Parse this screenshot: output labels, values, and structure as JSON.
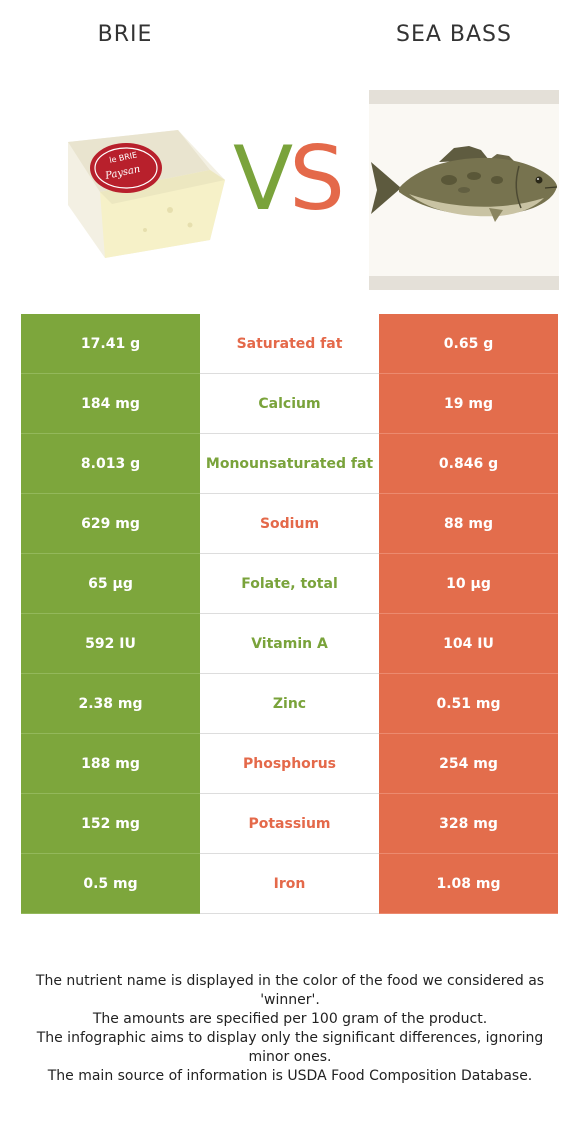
{
  "header": {
    "left_food": "BRIE",
    "right_food": "SEA BASS",
    "vs_v": "V",
    "vs_s": "S"
  },
  "cheese_label": {
    "line1": "le BRIE",
    "line2": "Paysan"
  },
  "colors": {
    "left": "#7da63c",
    "right": "#e36d4c"
  },
  "rows": [
    {
      "left": "17.41 g",
      "nutrient": "Saturated fat",
      "right": "0.65 g",
      "winner": "right"
    },
    {
      "left": "184 mg",
      "nutrient": "Calcium",
      "right": "19 mg",
      "winner": "left"
    },
    {
      "left": "8.013 g",
      "nutrient": "Monounsaturated fat",
      "right": "0.846 g",
      "winner": "left"
    },
    {
      "left": "629 mg",
      "nutrient": "Sodium",
      "right": "88 mg",
      "winner": "right"
    },
    {
      "left": "65 µg",
      "nutrient": "Folate, total",
      "right": "10 µg",
      "winner": "left"
    },
    {
      "left": "592 IU",
      "nutrient": "Vitamin A",
      "right": "104 IU",
      "winner": "left"
    },
    {
      "left": "2.38 mg",
      "nutrient": "Zinc",
      "right": "0.51 mg",
      "winner": "left"
    },
    {
      "left": "188 mg",
      "nutrient": "Phosphorus",
      "right": "254 mg",
      "winner": "right"
    },
    {
      "left": "152 mg",
      "nutrient": "Potassium",
      "right": "328 mg",
      "winner": "right"
    },
    {
      "left": "0.5 mg",
      "nutrient": "Iron",
      "right": "1.08 mg",
      "winner": "right"
    }
  ],
  "footer": {
    "line1": "The nutrient name is displayed in the color of the food we considered as 'winner'.",
    "line2": "The amounts are specified per 100 gram of the product.",
    "line3": "The infographic aims to display only the significant differences, ignoring minor ones.",
    "line4": "The main source of information is USDA Food Composition Database."
  }
}
